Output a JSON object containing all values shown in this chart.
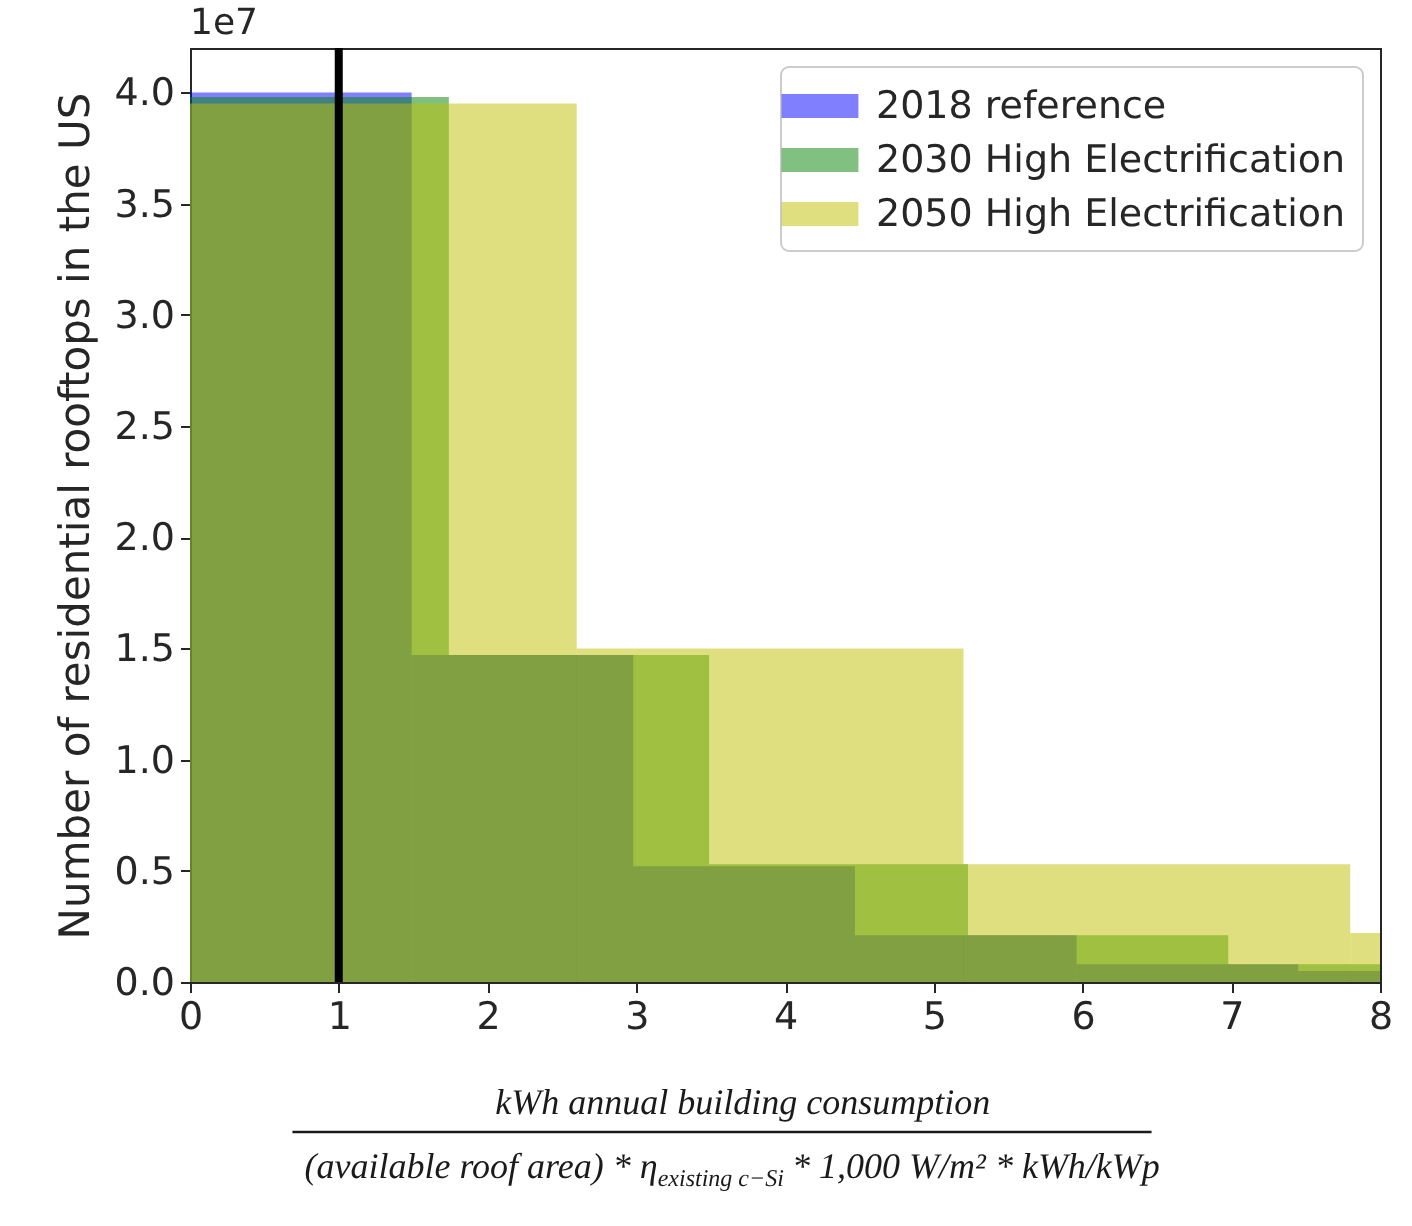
{
  "chart_data": {
    "type": "histogram",
    "xlabel": "kWh annual building consumption\n(available roof area) * η$_{existing c−Si}$ * 1,000 W/m² * kWh/kWp",
    "ylabel": "Number of residential rooftops in the US",
    "annotations": [
      "1e7"
    ],
    "bins": [
      0,
      1.49,
      2.98,
      4.47,
      5.96,
      7.45,
      8
    ],
    "series": [
      {
        "name": "2018 reference",
        "color": "#8080ff",
        "values": [
          4.0,
          1.47,
          0.52,
          0.21,
          0.08,
          0.05
        ]
      },
      {
        "name": "2030 High Electrification",
        "color": "#80c080",
        "type": "histogram",
        "bins": [
          0,
          1.74,
          3.49,
          5.23,
          6.98,
          8
        ],
        "values": [
          3.98,
          1.47,
          0.53,
          0.21,
          0.08
        ]
      },
      {
        "name": "2050 High Electrification",
        "color": "#dfdf80",
        "type": "histogram",
        "bins": [
          0,
          2.6,
          5.2,
          7.8,
          8
        ],
        "values": [
          3.95,
          1.5,
          0.53,
          0.22
        ]
      }
    ],
    "xlim": [
      0,
      8
    ],
    "xticks": [
      0,
      1,
      2,
      3,
      4,
      5,
      6,
      7,
      8
    ],
    "ylim": [
      0,
      4.2
    ],
    "yticks": [
      {
        "value": 0,
        "label": "0.0"
      },
      0.5,
      {
        "value": 1,
        "label": "1.0"
      },
      1.5,
      {
        "value": 2,
        "label": "2.0"
      },
      2.5,
      {
        "value": 3,
        "label": "3.0"
      },
      3.5,
      {
        "value": 4,
        "label": "4.0"
      }
    ],
    "ref_lines": [
      {
        "axis": "x",
        "value": 1,
        "color": "#000000"
      }
    ],
    "legend": "top right",
    "grid": false
  }
}
